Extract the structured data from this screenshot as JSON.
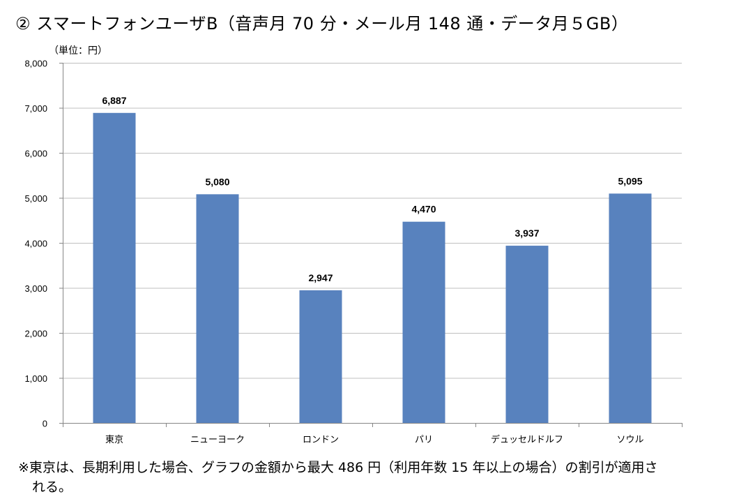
{
  "title": "② スマートフォンユーザB（音声月 70 分・メール月 148 通・データ月５GB）",
  "unit_label": "（単位：円）",
  "footnote_line1": "※東京は、長期利用した場合、グラフの金額から最大 486 円（利用年数 15 年以上の場合）の割引が適用さ",
  "footnote_line2": "れる。",
  "chart_data": {
    "type": "bar",
    "title": "② スマートフォンユーザB（音声月 70 分・メール月 148 通・データ月５GB）",
    "xlabel": "",
    "ylabel": "（単位：円）",
    "categories": [
      "東京",
      "ニューヨーク",
      "ロンドン",
      "パリ",
      "デュッセルドルフ",
      "ソウル"
    ],
    "values": [
      6887,
      5080,
      2947,
      4470,
      3937,
      5095
    ],
    "data_labels": [
      "6,887",
      "5,080",
      "2,947",
      "4,470",
      "3,937",
      "5,095"
    ],
    "ylim": [
      0,
      8000
    ],
    "yticks": [
      0,
      1000,
      2000,
      3000,
      4000,
      5000,
      6000,
      7000,
      8000
    ],
    "ytick_labels": [
      "0",
      "1,000",
      "2,000",
      "3,000",
      "4,000",
      "5,000",
      "6,000",
      "7,000",
      "8,000"
    ],
    "grid": true,
    "bar_color": "#5882BE",
    "grid_color": "#BFBFBF"
  }
}
